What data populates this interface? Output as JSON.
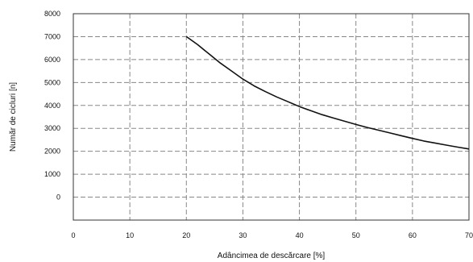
{
  "chart_data": {
    "type": "line",
    "xlabel": "Adâncimea de descărcare [%]",
    "ylabel": "Număr de cicluri [n]",
    "xlim": [
      0,
      70
    ],
    "ylim": [
      0,
      8000
    ],
    "x_ticks": [
      "0",
      "10",
      "20",
      "30",
      "40",
      "50",
      "60",
      "70"
    ],
    "y_ticks": [
      "8000",
      "7000",
      "6000",
      "5000",
      "4000",
      "3000",
      "2000",
      "1000",
      "0"
    ],
    "grid": true,
    "series": [
      {
        "color": "#111111",
        "x": [
          20,
          22,
          24,
          26,
          28,
          30,
          32,
          34,
          36,
          38,
          40,
          42,
          44,
          46,
          48,
          50,
          52,
          54,
          56,
          58,
          60,
          62,
          64,
          66,
          68,
          70
        ],
        "y": [
          7000,
          6650,
          6250,
          5850,
          5500,
          5150,
          4850,
          4600,
          4370,
          4160,
          3950,
          3770,
          3600,
          3450,
          3310,
          3170,
          3040,
          2920,
          2800,
          2680,
          2560,
          2450,
          2360,
          2270,
          2180,
          2100
        ]
      }
    ]
  }
}
